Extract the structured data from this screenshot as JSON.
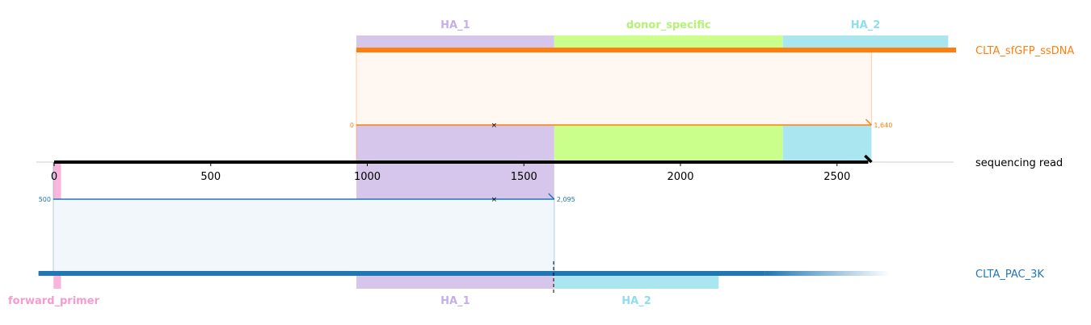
{
  "axis": {
    "label": "sequencing read",
    "ticks": [
      0,
      500,
      1000,
      1500,
      2000,
      2500
    ],
    "range": [
      -50,
      2880
    ],
    "read_end": 2610
  },
  "top_reference": {
    "name": "CLTA_sfGFP_ssDNA",
    "color": "#ff7f0e",
    "bar_end": 2880,
    "features": [
      {
        "name": "HA_1",
        "start": 965,
        "end": 1597,
        "color": "#d7c6eb",
        "label_color": "#c5b0e3"
      },
      {
        "name": "donor_specific",
        "start": 1597,
        "end": 2327,
        "color": "#c9ff8a",
        "label_color": "#b4f372"
      },
      {
        "name": "HA_2",
        "start": 2327,
        "end": 2855,
        "color": "#a9e6ef",
        "label_color": "#8fdfeb"
      }
    ],
    "alignment": {
      "read_start": 965,
      "read_end": 2610,
      "ref_start_label": "0",
      "ref_end_label": "1,640",
      "mismatch_read_pos": 1405
    }
  },
  "bottom_reference": {
    "name": "CLTA_PAC_3K",
    "color": "#1f77b4",
    "bar_start": -50,
    "bar_solid_end": 2270,
    "bar_fade_end": 2670,
    "cut_site": 1595,
    "features": [
      {
        "name": "forward_primer",
        "start": -2,
        "end": 22,
        "color": "#f9b5dc",
        "label_color": "#f59bd0"
      },
      {
        "name": "HA_1",
        "start": 965,
        "end": 1597,
        "color": "#d7c6eb",
        "label_color": "#c5b0e3"
      },
      {
        "name": "HA_2",
        "start": 1597,
        "end": 2122,
        "color": "#a9e6ef",
        "label_color": "#8fdfeb"
      }
    ],
    "alignment": {
      "read_start": 0,
      "read_end": 1597,
      "ref_start_label": "500",
      "ref_end_label": "2,095",
      "mismatch_read_pos": 1405
    }
  }
}
